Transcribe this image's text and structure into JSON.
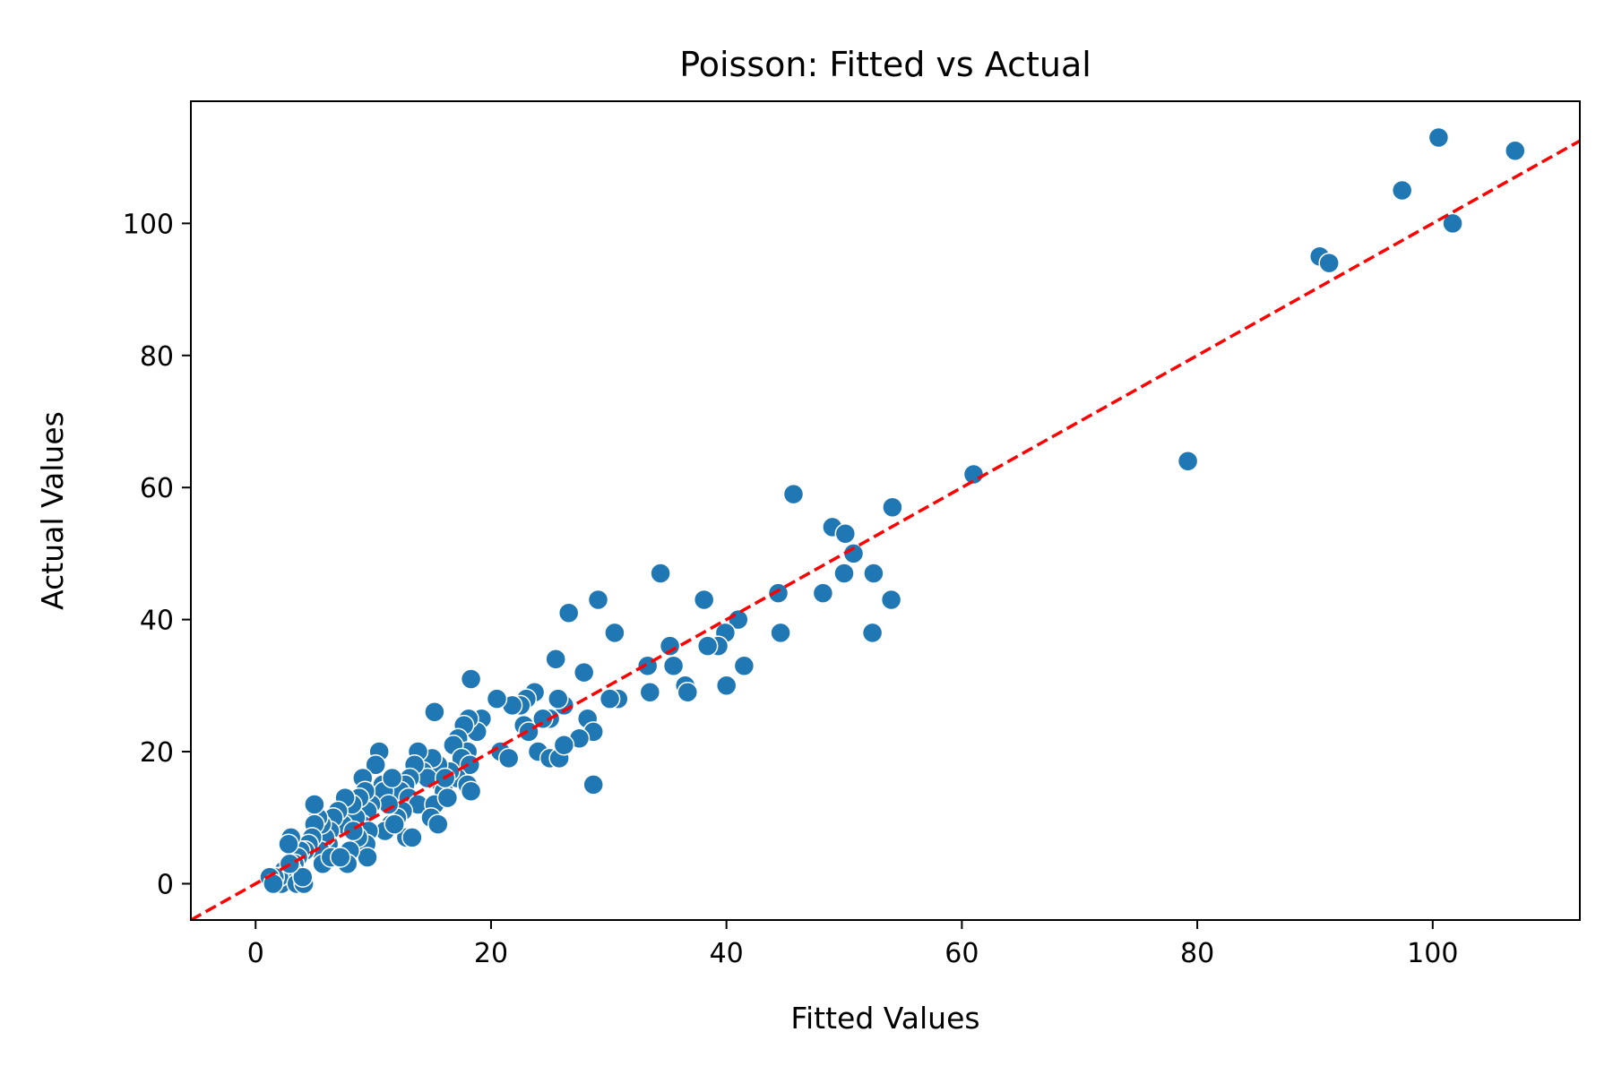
{
  "chart_data": {
    "type": "scatter",
    "title": "Poisson: Fitted vs Actual",
    "xlabel": "Fitted Values",
    "ylabel": "Actual Values",
    "xlim": [
      -5.5,
      112.5
    ],
    "ylim": [
      -5.5,
      118.5
    ],
    "xticks": [
      0,
      20,
      40,
      60,
      80,
      100
    ],
    "yticks": [
      0,
      20,
      40,
      60,
      80,
      100
    ],
    "grid": false,
    "legend": "none",
    "series": [
      {
        "color": "#1f77b4",
        "points": [
          [
            107.0,
            111
          ],
          [
            100.5,
            113
          ],
          [
            97.4,
            105
          ],
          [
            101.7,
            100
          ],
          [
            90.4,
            95
          ],
          [
            91.2,
            94
          ],
          [
            79.2,
            64
          ],
          [
            61.0,
            62
          ],
          [
            45.7,
            59
          ],
          [
            54.1,
            57
          ],
          [
            49.0,
            54
          ],
          [
            50.1,
            53
          ],
          [
            50.8,
            50
          ],
          [
            52.5,
            47
          ],
          [
            50.0,
            47
          ],
          [
            54.0,
            43
          ],
          [
            52.4,
            38
          ],
          [
            48.2,
            44
          ],
          [
            44.4,
            44
          ],
          [
            44.6,
            38
          ],
          [
            34.4,
            47
          ],
          [
            38.1,
            43
          ],
          [
            29.1,
            43
          ],
          [
            26.6,
            41
          ],
          [
            41.0,
            40
          ],
          [
            39.9,
            38
          ],
          [
            39.3,
            36
          ],
          [
            38.4,
            36
          ],
          [
            35.2,
            36
          ],
          [
            30.5,
            38
          ],
          [
            41.5,
            33
          ],
          [
            35.5,
            33
          ],
          [
            33.3,
            33
          ],
          [
            25.5,
            34
          ],
          [
            36.5,
            30
          ],
          [
            40.0,
            30
          ],
          [
            36.7,
            29
          ],
          [
            33.5,
            29
          ],
          [
            30.8,
            28
          ],
          [
            30.1,
            28
          ],
          [
            27.9,
            32
          ],
          [
            28.2,
            25
          ],
          [
            28.7,
            23
          ],
          [
            27.5,
            22
          ],
          [
            28.7,
            15
          ],
          [
            26.2,
            27
          ],
          [
            25.7,
            28
          ],
          [
            25.0,
            25
          ],
          [
            23.7,
            29
          ],
          [
            23.0,
            28
          ],
          [
            22.5,
            27
          ],
          [
            21.8,
            27
          ],
          [
            22.8,
            24
          ],
          [
            23.2,
            23
          ],
          [
            24.4,
            25
          ],
          [
            24.0,
            20
          ],
          [
            25.0,
            19
          ],
          [
            25.8,
            19
          ],
          [
            26.2,
            21
          ],
          [
            20.8,
            20
          ],
          [
            21.5,
            19
          ],
          [
            20.5,
            28
          ],
          [
            19.2,
            25
          ],
          [
            18.3,
            31
          ],
          [
            18.8,
            23
          ],
          [
            18.1,
            25
          ],
          [
            17.7,
            24
          ],
          [
            17.2,
            22
          ],
          [
            18.0,
            20
          ],
          [
            16.8,
            21
          ],
          [
            17.5,
            19
          ],
          [
            18.2,
            18
          ],
          [
            17.1,
            16
          ],
          [
            18.0,
            15
          ],
          [
            18.3,
            14
          ],
          [
            16.5,
            17
          ],
          [
            15.5,
            18
          ],
          [
            15.2,
            26
          ],
          [
            15.0,
            19
          ],
          [
            15.8,
            15
          ],
          [
            16.0,
            14
          ],
          [
            14.2,
            17
          ],
          [
            14.6,
            16
          ],
          [
            13.8,
            20
          ],
          [
            13.5,
            18
          ],
          [
            13.1,
            16
          ],
          [
            12.7,
            15
          ],
          [
            12.3,
            14
          ],
          [
            13.0,
            13
          ],
          [
            13.8,
            12
          ],
          [
            15.2,
            12
          ],
          [
            14.9,
            10
          ],
          [
            15.5,
            9
          ],
          [
            12.5,
            11
          ],
          [
            12.0,
            10
          ],
          [
            11.5,
            9
          ],
          [
            11.0,
            8
          ],
          [
            10.8,
            15
          ],
          [
            10.7,
            13
          ],
          [
            10.5,
            20
          ],
          [
            10.2,
            18
          ],
          [
            10.9,
            14
          ],
          [
            11.3,
            12
          ],
          [
            11.6,
            16
          ],
          [
            12.8,
            7
          ],
          [
            9.8,
            12
          ],
          [
            9.5,
            11
          ],
          [
            9.1,
            16
          ],
          [
            9.3,
            14
          ],
          [
            8.8,
            13
          ],
          [
            9.0,
            9
          ],
          [
            8.5,
            10
          ],
          [
            8.2,
            12
          ],
          [
            9.6,
            8
          ],
          [
            9.4,
            6
          ],
          [
            8.7,
            7
          ],
          [
            9.5,
            4
          ],
          [
            8.0,
            5
          ],
          [
            7.8,
            3
          ],
          [
            7.6,
            13
          ],
          [
            7.4,
            9
          ],
          [
            7.0,
            11
          ],
          [
            6.6,
            10
          ],
          [
            6.3,
            8
          ],
          [
            6.2,
            6
          ],
          [
            5.9,
            7
          ],
          [
            5.6,
            9
          ],
          [
            5.3,
            10
          ],
          [
            5.0,
            12
          ],
          [
            5.0,
            9
          ],
          [
            5.5,
            5
          ],
          [
            5.7,
            3
          ],
          [
            6.4,
            4
          ],
          [
            4.8,
            7
          ],
          [
            4.5,
            6
          ],
          [
            4.2,
            5
          ],
          [
            3.8,
            5
          ],
          [
            3.6,
            4
          ],
          [
            3.3,
            3
          ],
          [
            3.1,
            2
          ],
          [
            3.0,
            7
          ],
          [
            2.8,
            6
          ],
          [
            2.6,
            1
          ],
          [
            2.4,
            2
          ],
          [
            2.2,
            0
          ],
          [
            2.0,
            1
          ],
          [
            1.6,
            1
          ],
          [
            1.2,
            1
          ],
          [
            1.5,
            0
          ],
          [
            3.5,
            0
          ],
          [
            4.1,
            0
          ],
          [
            4.0,
            1
          ],
          [
            2.9,
            3
          ],
          [
            7.2,
            4
          ],
          [
            8.3,
            8
          ],
          [
            11.8,
            9
          ],
          [
            13.3,
            7
          ],
          [
            16.3,
            13
          ],
          [
            16.1,
            16
          ]
        ]
      }
    ],
    "reference_line": {
      "color": "#ff0000",
      "style": "dashed",
      "slope": 1,
      "intercept": 0
    }
  }
}
